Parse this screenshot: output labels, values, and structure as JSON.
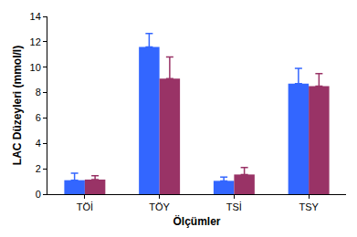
{
  "chart_data": {
    "type": "bar",
    "x_label": "Ölçümler",
    "y_label": "LAC Düzeyleri (mmol/l)",
    "categories": [
      "TÖİ",
      "TÖY",
      "TSİ",
      "TSY"
    ],
    "series": [
      {
        "color": "#3366ff",
        "values": [
          1.1,
          11.6,
          1.05,
          8.7
        ],
        "errors": [
          0.55,
          1.05,
          0.3,
          1.2
        ]
      },
      {
        "color": "#993366",
        "values": [
          1.15,
          9.1,
          1.55,
          8.5
        ],
        "errors": [
          0.3,
          1.7,
          0.55,
          1.0
        ]
      }
    ],
    "ylim": [
      0,
      14
    ],
    "yticks": [
      0,
      2,
      4,
      6,
      8,
      10,
      12,
      14
    ],
    "grid": false
  }
}
